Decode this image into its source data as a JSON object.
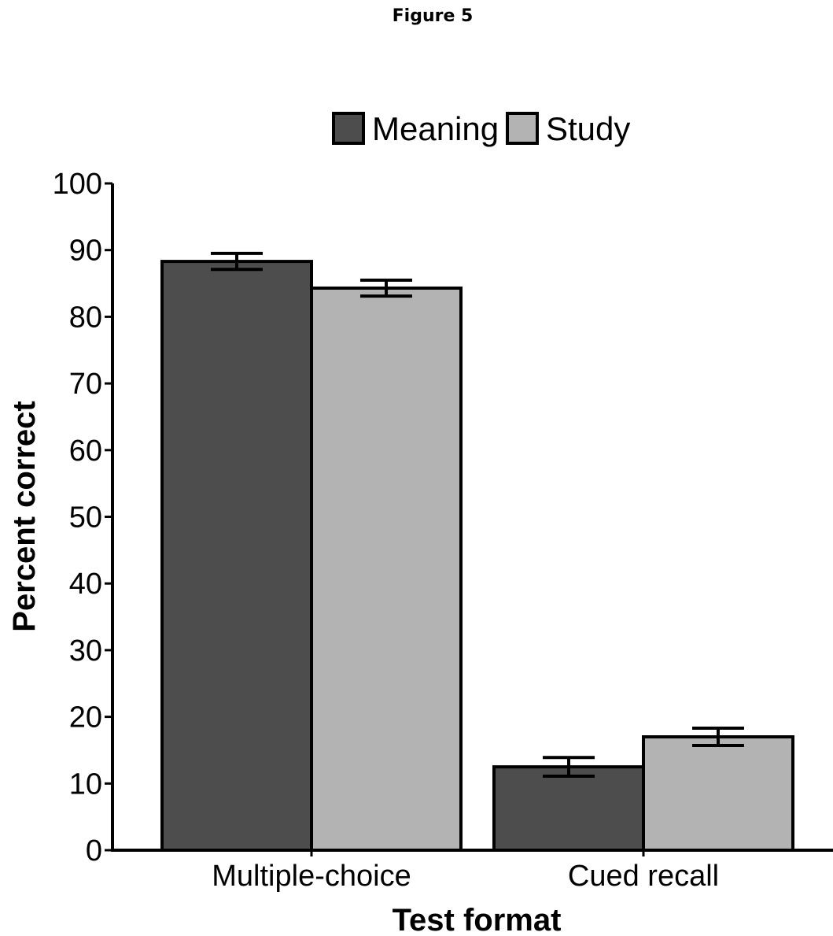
{
  "figure": {
    "title": "Figure 5"
  },
  "chart_data": {
    "type": "bar",
    "title": "",
    "xlabel": "Test format",
    "ylabel": "Percent correct",
    "categories": [
      "Multiple-choice",
      "Cued recall"
    ],
    "series": [
      {
        "name": "Meaning",
        "color": "#4d4d4d",
        "values": [
          88.3,
          12.5
        ],
        "errors": [
          1.2,
          1.4
        ]
      },
      {
        "name": "Study",
        "color": "#b3b3b3",
        "values": [
          84.3,
          17.0
        ],
        "errors": [
          1.2,
          1.3
        ]
      }
    ],
    "ylim": [
      0,
      100
    ],
    "yticks": [
      "0",
      "10",
      "20",
      "30",
      "40",
      "50",
      "60",
      "70",
      "80",
      "90",
      "100"
    ],
    "grid": false,
    "legend_position": "top"
  }
}
